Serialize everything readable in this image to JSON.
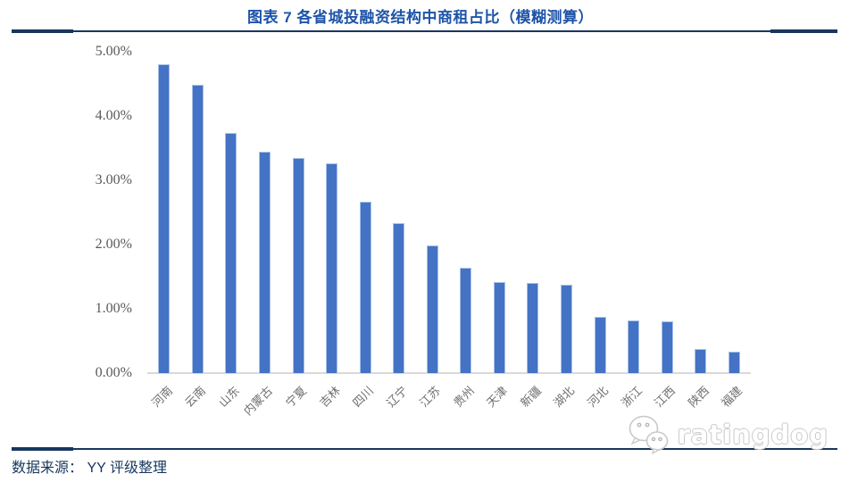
{
  "figure": {
    "source": "数据来源： YY 评级整理",
    "watermark_text": "ratingdog",
    "watermark_icon": "dog-chat-bubbles-icon"
  },
  "chart_data": {
    "type": "bar",
    "title": "图表 7 各省城投融资结构中商租占比（模糊测算）",
    "categories": [
      "河南",
      "云南",
      "山东",
      "内蒙古",
      "宁夏",
      "吉林",
      "四川",
      "辽宁",
      "江苏",
      "贵州",
      "天津",
      "新疆",
      "湖北",
      "河北",
      "浙江",
      "江西",
      "陕西",
      "福建"
    ],
    "values": [
      4.81,
      4.48,
      3.74,
      3.44,
      3.35,
      3.27,
      2.66,
      2.33,
      1.98,
      1.64,
      1.42,
      1.4,
      1.38,
      0.88,
      0.82,
      0.81,
      0.38,
      0.34
    ],
    "unit": "%",
    "xlabel": "",
    "ylabel": "",
    "ylim": [
      0,
      5
    ],
    "ytick_labels": [
      "0.00%",
      "1.00%",
      "2.00%",
      "3.00%",
      "4.00%",
      "5.00%"
    ],
    "grid": false,
    "legend_position": "none",
    "x_label_rotation_deg": -45,
    "colors": {
      "bar_fill": "#4472C4",
      "bar_border": "#A6C1E8",
      "axis_line": "#D9D9D9",
      "tick_text": "#595959",
      "title_text": "#1E54A8",
      "rule_navy": "#17375E"
    }
  }
}
